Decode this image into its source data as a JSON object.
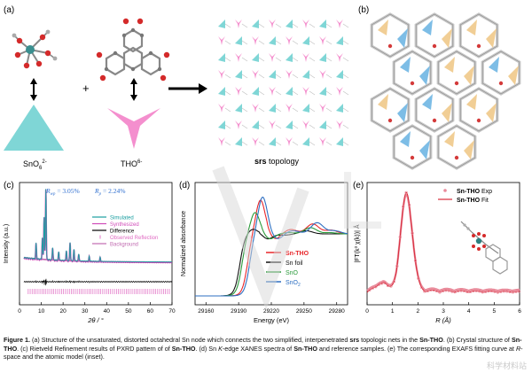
{
  "panels": {
    "a": {
      "label": "(a)",
      "node1_label": "SnO",
      "node1_sub": "6",
      "node1_sup": "2-",
      "node2_label": "THO",
      "node2_sup": "6-",
      "plus": "+",
      "topology_bold": "srs",
      "topology_rest": " topology",
      "colors": {
        "triangle": "#7fd6d6",
        "trigonal": "#f48fce",
        "arrow": "#000000"
      }
    },
    "b": {
      "label": "(b)",
      "colors": {
        "tan": "#f0c98a",
        "blue": "#6fb6e3",
        "frame": "#c8c8c8"
      }
    },
    "c": {
      "label": "(c)"
    },
    "d": {
      "label": "(d)"
    },
    "e": {
      "label": "(e)"
    }
  },
  "chart_data": [
    {
      "panel": "c",
      "type": "line",
      "xlabel": "2θ / °",
      "ylabel": "Intensity (a.u.)",
      "xlim": [
        0,
        70
      ],
      "xticks": [
        0,
        10,
        20,
        30,
        40,
        50,
        60,
        70
      ],
      "annotations": {
        "rwp": "R",
        "rwp_sub": "wp",
        "rwp_val": " = 3.05%",
        "rp": "R",
        "rp_sub": "p",
        "rp_val": " = 2.24%"
      },
      "legend": [
        "Simulated",
        "Synthesized",
        "Difference",
        "Observed Reflection",
        "Background"
      ],
      "legend_colors": [
        "#1a9ea0",
        "#d04bb8",
        "#000000",
        "#e06bc3",
        "#c06ab0"
      ],
      "peaks": [
        {
          "x": 7.6,
          "h": 0.22
        },
        {
          "x": 10.5,
          "h": 0.3
        },
        {
          "x": 11.3,
          "h": 0.6
        },
        {
          "x": 12.1,
          "h": 1.0
        },
        {
          "x": 15.2,
          "h": 0.18
        },
        {
          "x": 18.0,
          "h": 0.12
        },
        {
          "x": 21.5,
          "h": 0.14
        },
        {
          "x": 23.2,
          "h": 0.26
        },
        {
          "x": 25.0,
          "h": 0.16
        },
        {
          "x": 27.2,
          "h": 0.1
        },
        {
          "x": 32.0,
          "h": 0.07
        },
        {
          "x": 37.0,
          "h": 0.06
        }
      ]
    },
    {
      "panel": "d",
      "type": "line",
      "xlabel": "Energy (eV)",
      "ylabel": "Normalized absorbance",
      "xlim": [
        29150,
        29290
      ],
      "xticks": [
        29160,
        29190,
        29220,
        29250,
        29280
      ],
      "series": [
        {
          "name": "Sn-THO",
          "color": "#e8262a",
          "edge": 29202,
          "peak": 1.55,
          "osc": [
            [
              29238,
              1.07
            ],
            [
              29258,
              1.16
            ],
            [
              29275,
              1.06
            ]
          ]
        },
        {
          "name": "Sn foil",
          "color": "#111111",
          "edge": 29195,
          "peak": 1.08,
          "osc": [
            [
              29232,
              0.98
            ],
            [
              29252,
              1.05
            ],
            [
              29272,
              1.0
            ]
          ]
        },
        {
          "name": "SnO",
          "color": "#2a9a3a",
          "edge": 29197,
          "peak": 1.35,
          "osc": [
            [
              29236,
              1.02
            ],
            [
              29256,
              1.1
            ],
            [
              29274,
              1.02
            ]
          ]
        },
        {
          "name": "SnO2",
          "color": "#2d6fc2",
          "edge": 29204,
          "peak": 1.6,
          "osc": [
            [
              29240,
              1.05
            ],
            [
              29262,
              1.18
            ],
            [
              29278,
              1.05
            ]
          ]
        }
      ],
      "legend_labels": [
        "Sn-THO",
        "Sn foil",
        "SnO",
        "SnO",
        "2"
      ]
    },
    {
      "panel": "e",
      "type": "line",
      "xlabel": "R (Å)",
      "ylabel": "|FT(k³ χ(k))| Å",
      "xlim": [
        0,
        6
      ],
      "xticks": [
        0,
        1,
        2,
        3,
        4,
        5,
        6
      ],
      "series": [
        {
          "name": "Sn-THO Exp",
          "color": "#e98a9a"
        },
        {
          "name": "Sn-THO Fit",
          "color": "#d82a3a"
        }
      ],
      "peak_R": 1.55,
      "legend_bold": "Sn-THO",
      "legend_rest": [
        " Exp",
        " Fit"
      ]
    }
  ],
  "caption": {
    "fig": "Figure 1.",
    "t1": " (a) Structure of the unsaturated, distorted octahedral Sn node which connects the two simplified, interpenetrated ",
    "srs": "srs",
    "t2": " topologic nets in the ",
    "sn1": "Sn-THO",
    "t3": ". (b) Crystal structure of ",
    "sn2": "Sn-THO",
    "t4": ". (c) Rietveld Refinement results of PXRD pattern of of ",
    "sn3": "Sn-THO",
    "t5": ". (d) Sn ",
    "k": "K",
    "t6": "-edge XANES spectra of ",
    "sn4": "Sn-THO",
    "t7": " and reference samples. (e) The corresponding EXAFS fitting curve at ",
    "r": "R",
    "t8": "-space and the atomic model (inset)."
  },
  "watermark": "科学材料站"
}
